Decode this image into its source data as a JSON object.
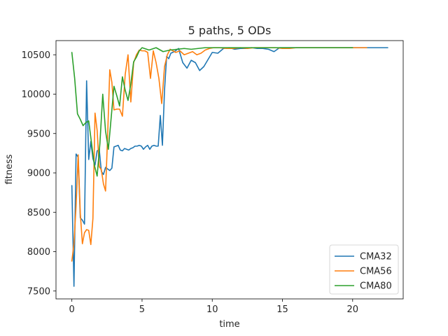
{
  "chart_data": {
    "type": "line",
    "title": "5 paths, 5 ODs",
    "xlabel": "time",
    "ylabel": "fitness",
    "xlim": [
      -1.13,
      23.6
    ],
    "ylim": [
      7400,
      10680
    ],
    "xticks": [
      0,
      5,
      10,
      15,
      20
    ],
    "yticks": [
      7500,
      8000,
      8500,
      9000,
      9500,
      10000,
      10500
    ],
    "grid": false,
    "legend_position": "lower-right",
    "colors": {
      "CMA32": "#1f77b4",
      "CMA56": "#ff7f0e",
      "CMA80": "#2ca02c"
    },
    "series": [
      {
        "name": "CMA32",
        "color": "#1f77b4",
        "x": [
          0.0,
          0.15,
          0.3,
          0.45,
          0.6,
          0.75,
          0.9,
          1.05,
          1.2,
          1.35,
          1.5,
          1.65,
          1.8,
          1.95,
          2.1,
          2.25,
          2.4,
          2.55,
          2.7,
          2.85,
          3.0,
          3.15,
          3.3,
          3.45,
          3.6,
          3.75,
          3.9,
          4.05,
          4.2,
          4.35,
          4.5,
          4.65,
          4.8,
          4.95,
          5.1,
          5.25,
          5.4,
          5.55,
          5.7,
          5.85,
          6.0,
          6.15,
          6.3,
          6.45,
          6.6,
          6.75,
          6.9,
          7.05,
          7.3,
          7.6,
          7.9,
          8.2,
          8.5,
          8.8,
          9.1,
          9.4,
          9.7,
          10.0,
          10.4,
          10.8,
          11.2,
          11.6,
          12.0,
          12.4,
          12.8,
          13.2,
          13.6,
          14.0,
          14.4,
          14.8,
          15.2,
          15.6,
          16.0,
          16.5,
          17.0,
          17.5,
          18.0,
          18.5,
          19.0,
          19.5,
          20.0,
          20.5,
          21.0,
          21.5,
          22.0,
          22.5
        ],
        "values": [
          8840,
          7560,
          9240,
          9200,
          8430,
          8400,
          8350,
          10170,
          9170,
          9400,
          9180,
          9100,
          9280,
          9300,
          9020,
          8980,
          9070,
          9050,
          9030,
          9060,
          9330,
          9340,
          9350,
          9290,
          9280,
          9310,
          9300,
          9290,
          9310,
          9320,
          9340,
          9340,
          9350,
          9340,
          9300,
          9330,
          9350,
          9300,
          9340,
          9350,
          9340,
          9340,
          9730,
          9350,
          10050,
          10480,
          10450,
          10520,
          10540,
          10580,
          10400,
          10330,
          10430,
          10400,
          10300,
          10350,
          10440,
          10530,
          10520,
          10580,
          10590,
          10570,
          10580,
          10580,
          10590,
          10580,
          10580,
          10570,
          10540,
          10590,
          10590,
          10590,
          10590,
          10590,
          10590,
          10590,
          10590,
          10590,
          10590,
          10590,
          10590,
          10590,
          10590,
          10590,
          10590,
          10590
        ]
      },
      {
        "name": "CMA56",
        "color": "#ff7f0e",
        "x": [
          0.0,
          0.15,
          0.3,
          0.45,
          0.6,
          0.75,
          0.9,
          1.05,
          1.2,
          1.35,
          1.5,
          1.65,
          1.8,
          1.95,
          2.1,
          2.25,
          2.4,
          2.55,
          2.7,
          2.85,
          3.0,
          3.2,
          3.4,
          3.6,
          3.8,
          4.0,
          4.2,
          4.4,
          4.6,
          4.8,
          5.0,
          5.2,
          5.4,
          5.6,
          5.8,
          6.0,
          6.2,
          6.4,
          6.6,
          6.8,
          7.0,
          7.2,
          7.4,
          7.7,
          8.0,
          8.3,
          8.6,
          8.9,
          9.2,
          9.5,
          9.8,
          10.1,
          10.5,
          11.0,
          11.5,
          12.0,
          12.5,
          13.0,
          13.5,
          14.0,
          14.5,
          15.0,
          15.5,
          16.0,
          17.0,
          18.0,
          19.0,
          20.0,
          20.5,
          21.0
        ],
        "values": [
          7880,
          8100,
          8580,
          9230,
          8490,
          8100,
          8240,
          8280,
          8270,
          8090,
          8420,
          9760,
          9540,
          9080,
          9040,
          8860,
          8770,
          9480,
          10310,
          10150,
          9800,
          9810,
          9810,
          9720,
          10250,
          10500,
          9900,
          10400,
          10500,
          10560,
          10550,
          10550,
          10530,
          10200,
          10550,
          10400,
          10200,
          9880,
          10350,
          10500,
          10570,
          10550,
          10530,
          10550,
          10500,
          10520,
          10540,
          10500,
          10520,
          10560,
          10580,
          10590,
          10590,
          10580,
          10580,
          10590,
          10580,
          10590,
          10590,
          10590,
          10590,
          10580,
          10580,
          10590,
          10590,
          10590,
          10590,
          10590,
          10590,
          10590
        ]
      },
      {
        "name": "CMA80",
        "color": "#2ca02c",
        "x": [
          0.0,
          0.2,
          0.4,
          0.6,
          0.8,
          1.0,
          1.2,
          1.4,
          1.6,
          1.8,
          2.0,
          2.2,
          2.4,
          2.6,
          2.8,
          3.0,
          3.2,
          3.4,
          3.6,
          3.8,
          4.0,
          4.2,
          4.4,
          4.6,
          4.8,
          5.0,
          5.5,
          6.0,
          6.5,
          7.0,
          7.5,
          8.0,
          8.5,
          9.0,
          9.5,
          10.0,
          10.5,
          11.0,
          12.0,
          13.0,
          14.0,
          15.0,
          16.0,
          17.0,
          18.0,
          19.0,
          20.0
        ],
        "values": [
          10530,
          10200,
          9750,
          9680,
          9600,
          9640,
          9660,
          9380,
          9100,
          8960,
          9380,
          10000,
          9530,
          9300,
          9700,
          10100,
          9980,
          9850,
          10220,
          10050,
          9920,
          10130,
          10410,
          10470,
          10550,
          10590,
          10560,
          10590,
          10540,
          10560,
          10570,
          10580,
          10570,
          10580,
          10590,
          10590,
          10590,
          10590,
          10590,
          10590,
          10590,
          10590,
          10590,
          10590,
          10590,
          10590,
          10590
        ]
      }
    ]
  }
}
